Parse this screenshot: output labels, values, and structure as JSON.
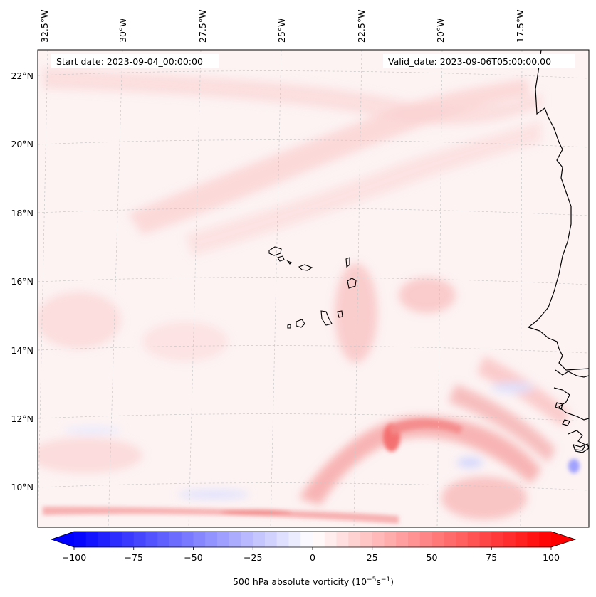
{
  "map": {
    "start_date": "Start date: 2023-09-04_00:00:00",
    "valid_date": "Valid_date: 2023-09-06T05:00:00.00",
    "lon_labels": [
      "32.5°W",
      "30°W",
      "27.5°W",
      "25°W",
      "22.5°W",
      "20°W",
      "17.5°W"
    ],
    "lat_labels": [
      "22°N",
      "20°N",
      "18°N",
      "16°N",
      "14°N",
      "12°N",
      "10°N"
    ],
    "colors": {
      "coast": "#000000",
      "grid": "#c8c8c8",
      "background": "#fdf3f3"
    },
    "features": [
      {
        "name": "vorticity-max-cape-verde-south",
        "lon": -21.5,
        "lat": 11.3,
        "value": 65
      },
      {
        "name": "vorticity-band-south",
        "lat": 9.2,
        "value": 45
      },
      {
        "name": "vorticity-min-coast",
        "lon": -16.8,
        "lat": 10.2,
        "value": -30
      }
    ]
  },
  "colorbar": {
    "label_main": "500 hPa absolute vorticity (10",
    "label_exp1": "−5",
    "label_mid": "s",
    "label_exp2": "−1",
    "label_end": ")",
    "ticks": [
      "−100",
      "−75",
      "−50",
      "−25",
      "0",
      "25",
      "50",
      "75",
      "100"
    ],
    "tick_values": [
      -100,
      -75,
      -50,
      -25,
      0,
      25,
      50,
      75,
      100
    ],
    "min": -100,
    "max": 100,
    "levels": 40,
    "low_color": "#0000ff",
    "zero_color": "#ffffff",
    "high_color": "#ff0000"
  }
}
